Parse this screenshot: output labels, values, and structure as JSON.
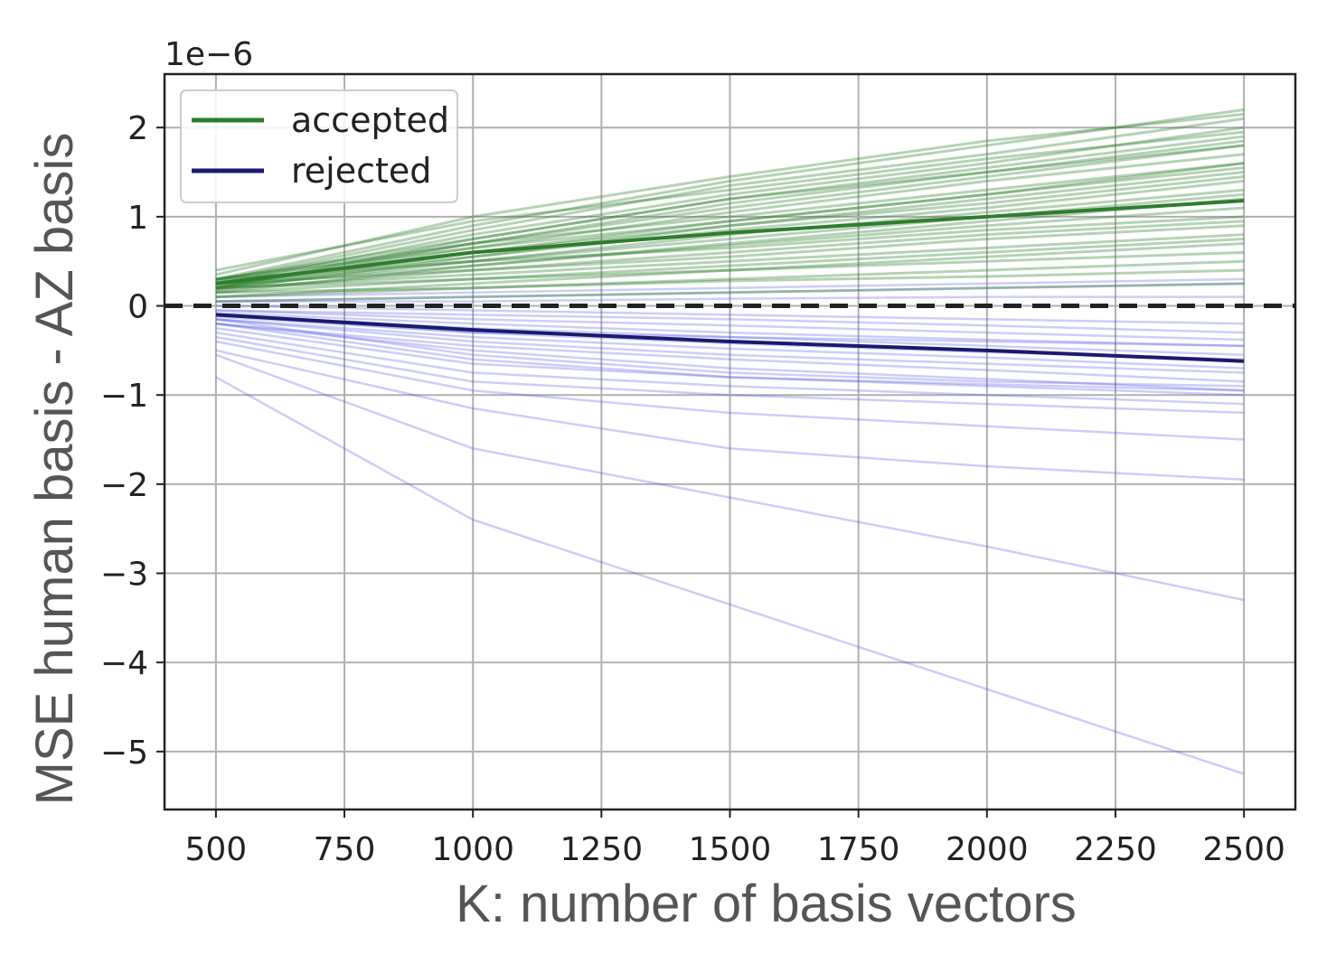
{
  "chart_data": {
    "type": "line",
    "xlabel": "K: number of basis vectors",
    "ylabel": "MSE human basis - AZ basis",
    "y_offset_label": "1e−6",
    "x_ticks": [
      500,
      750,
      1000,
      1250,
      1500,
      1750,
      2000,
      2250,
      2500
    ],
    "x_tick_labels": [
      "500",
      "750",
      "1000",
      "1250",
      "1500",
      "1750",
      "2000",
      "2250",
      "2500"
    ],
    "y_ticks": [
      -5,
      -4,
      -3,
      -2,
      -1,
      0,
      1,
      2
    ],
    "y_tick_labels": [
      "−5",
      "−4",
      "−3",
      "−2",
      "−1",
      "0",
      "1",
      "2"
    ],
    "xlim": [
      400,
      2600
    ],
    "ylim": [
      -5.65,
      2.6
    ],
    "grid": true,
    "legend_position": "top-left",
    "x": [
      500,
      1000,
      1500,
      2000,
      2500
    ],
    "series": [
      {
        "name": "accepted",
        "color": "#2e7d2e",
        "role": "mean",
        "values": [
          0.25,
          0.6,
          0.82,
          1.0,
          1.18
        ]
      },
      {
        "name": "rejected",
        "color": "#1a1a6e",
        "role": "mean",
        "values": [
          -0.1,
          -0.27,
          -0.4,
          -0.5,
          -0.62
        ]
      }
    ],
    "individual_lines": {
      "accepted": {
        "color": "#2e7d2e",
        "lines": [
          [
            0.3,
            0.9,
            1.4,
            1.8,
            2.2
          ],
          [
            0.28,
            0.85,
            1.35,
            1.7,
            2.1
          ],
          [
            0.25,
            0.8,
            1.25,
            1.6,
            2.0
          ],
          [
            0.3,
            0.75,
            1.2,
            1.55,
            1.9
          ],
          [
            0.2,
            0.7,
            1.15,
            1.5,
            1.85
          ],
          [
            0.25,
            0.7,
            1.1,
            1.45,
            1.8
          ],
          [
            0.22,
            0.65,
            1.05,
            1.4,
            1.7
          ],
          [
            0.3,
            0.7,
            1.0,
            1.3,
            1.6
          ],
          [
            0.2,
            0.6,
            0.95,
            1.25,
            1.55
          ],
          [
            0.25,
            0.6,
            0.9,
            1.2,
            1.5
          ],
          [
            0.18,
            0.55,
            0.9,
            1.15,
            1.45
          ],
          [
            0.28,
            0.55,
            0.85,
            1.1,
            1.4
          ],
          [
            0.2,
            0.5,
            0.8,
            1.05,
            1.3
          ],
          [
            0.25,
            0.5,
            0.75,
            1.0,
            1.25
          ],
          [
            0.15,
            0.45,
            0.7,
            0.95,
            1.2
          ],
          [
            0.22,
            0.45,
            0.68,
            0.9,
            1.1
          ],
          [
            0.3,
            0.5,
            0.65,
            0.85,
            1.0
          ],
          [
            0.18,
            0.4,
            0.6,
            0.8,
            0.95
          ],
          [
            0.25,
            0.4,
            0.55,
            0.75,
            0.9
          ],
          [
            0.2,
            0.35,
            0.5,
            0.65,
            0.8
          ],
          [
            0.15,
            0.3,
            0.45,
            0.6,
            0.75
          ],
          [
            0.1,
            0.25,
            0.4,
            0.55,
            0.7
          ],
          [
            0.2,
            0.3,
            0.4,
            0.5,
            0.6
          ],
          [
            0.1,
            0.2,
            0.3,
            0.4,
            0.5
          ],
          [
            0.15,
            0.2,
            0.28,
            0.33,
            0.4
          ],
          [
            0.05,
            0.1,
            0.15,
            0.2,
            0.25
          ],
          [
            0.35,
            1.0,
            1.45,
            1.85,
            2.15
          ],
          [
            0.4,
            0.95,
            1.3,
            1.65,
            1.95
          ],
          [
            0.2,
            0.75,
            1.2,
            1.5,
            1.8
          ],
          [
            0.3,
            0.65,
            0.95,
            1.25,
            1.6
          ]
        ]
      },
      "rejected": {
        "color": "#4a4ae8",
        "lines": [
          [
            -0.8,
            -2.4,
            -3.35,
            -4.3,
            -5.25
          ],
          [
            -0.55,
            -1.6,
            -2.15,
            -2.7,
            -3.3
          ],
          [
            -0.5,
            -1.15,
            -1.6,
            -1.8,
            -1.95
          ],
          [
            -0.4,
            -0.95,
            -1.2,
            -1.35,
            -1.5
          ],
          [
            -0.35,
            -0.85,
            -1.0,
            -1.1,
            -1.2
          ],
          [
            -0.3,
            -0.75,
            -0.9,
            -1.0,
            -1.1
          ],
          [
            -0.25,
            -0.65,
            -0.8,
            -0.9,
            -1.0
          ],
          [
            -0.2,
            -0.5,
            -0.7,
            -0.82,
            -0.95
          ],
          [
            -0.2,
            -0.45,
            -0.6,
            -0.72,
            -0.85
          ],
          [
            -0.15,
            -0.4,
            -0.55,
            -0.65,
            -0.75
          ],
          [
            -0.15,
            -0.35,
            -0.48,
            -0.58,
            -0.7
          ],
          [
            -0.1,
            -0.3,
            -0.42,
            -0.52,
            -0.6
          ],
          [
            -0.1,
            -0.25,
            -0.35,
            -0.45,
            -0.55
          ],
          [
            -0.08,
            -0.2,
            -0.3,
            -0.38,
            -0.45
          ],
          [
            -0.05,
            -0.15,
            -0.22,
            -0.3,
            -0.38
          ],
          [
            -0.05,
            -0.1,
            -0.15,
            -0.22,
            -0.3
          ],
          [
            0.0,
            -0.05,
            -0.1,
            -0.15,
            -0.2
          ],
          [
            0.05,
            0.05,
            0.08,
            0.1,
            0.1
          ],
          [
            0.1,
            0.15,
            0.2,
            0.25,
            0.3
          ],
          [
            0.05,
            0.1,
            0.15,
            0.2,
            0.25
          ],
          [
            -0.15,
            -0.55,
            -0.75,
            -0.85,
            -0.9
          ],
          [
            -0.2,
            -0.6,
            -0.8,
            -0.88,
            -0.95
          ],
          [
            -0.12,
            -0.3,
            -0.35,
            -0.4,
            -0.45
          ]
        ]
      }
    },
    "reference_line": {
      "y": 0,
      "style": "dashed",
      "color": "#222222"
    }
  }
}
